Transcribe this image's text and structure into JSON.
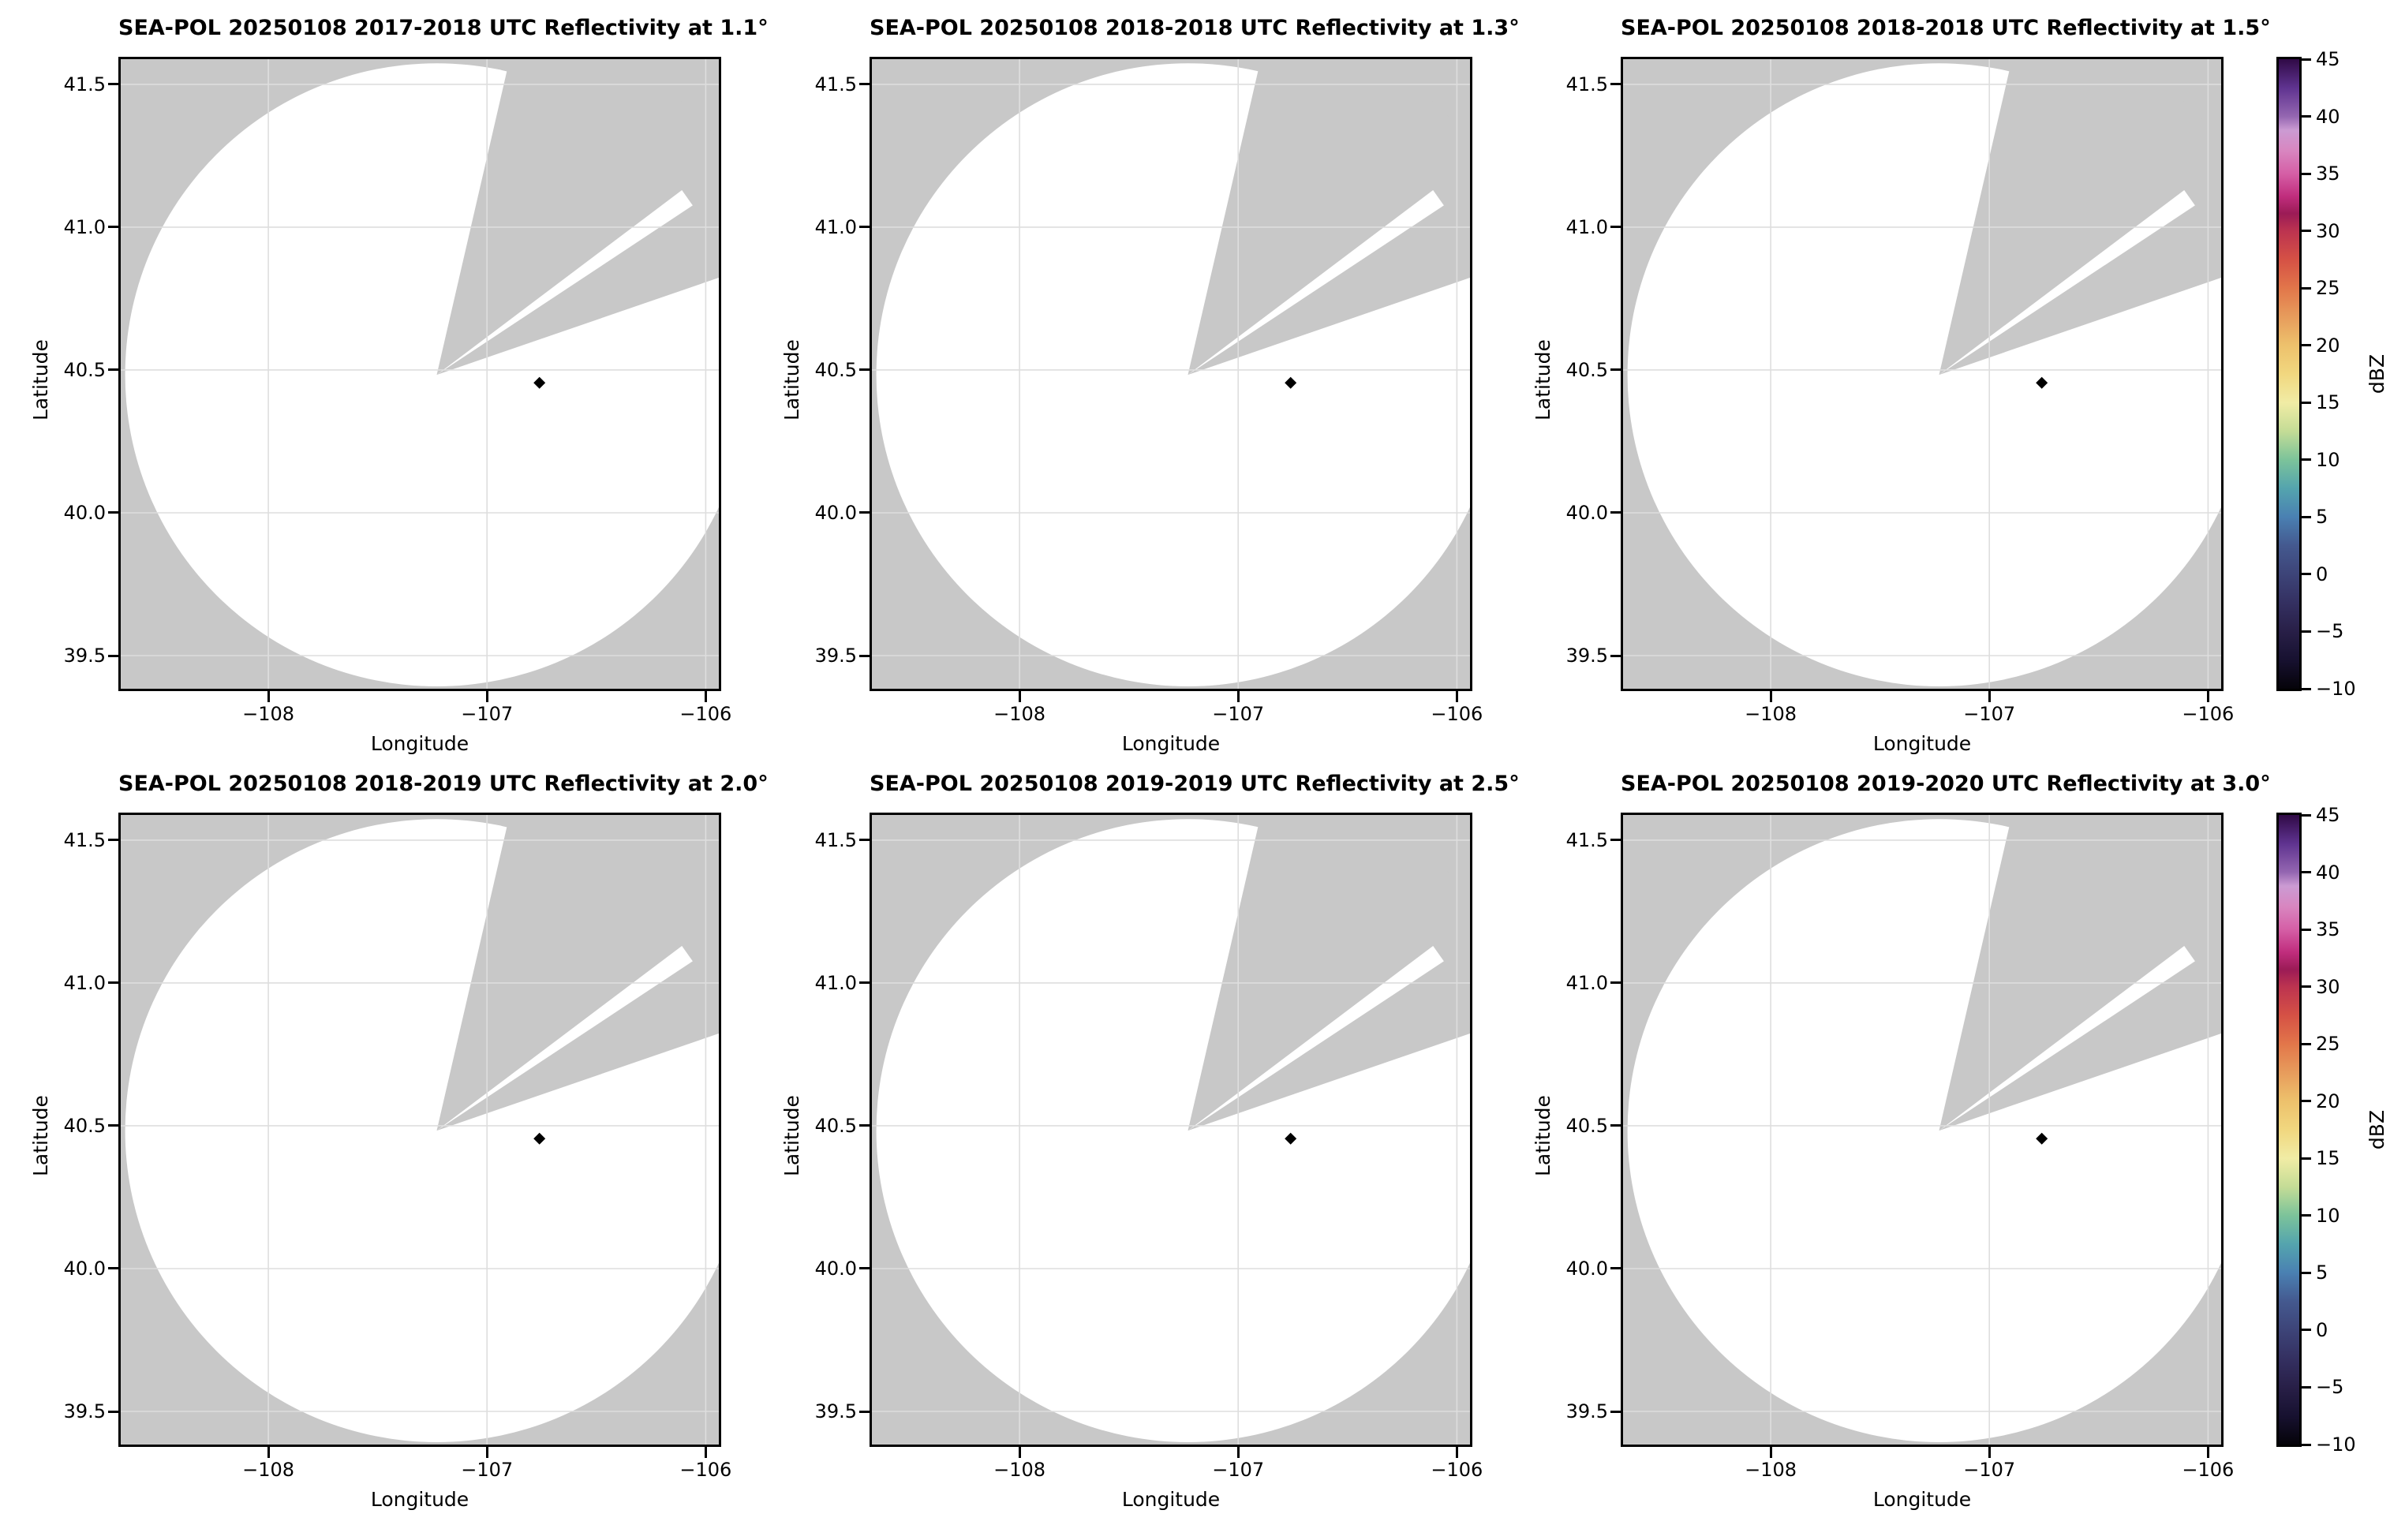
{
  "figure": {
    "panels": [
      {
        "title": "SEA-POL 20250108 2017-2018 UTC Reflectivity at 1.1°"
      },
      {
        "title": "SEA-POL 20250108 2018-2018 UTC Reflectivity at 1.3°"
      },
      {
        "title": "SEA-POL 20250108 2018-2018 UTC Reflectivity at 1.5°"
      },
      {
        "title": "SEA-POL 20250108 2018-2019 UTC Reflectivity at 2.0°"
      },
      {
        "title": "SEA-POL 20250108 2019-2019 UTC Reflectivity at 2.5°"
      },
      {
        "title": "SEA-POL 20250108 2019-2020 UTC Reflectivity at 3.0°"
      }
    ],
    "axes": {
      "x_label": "Longitude",
      "y_label": "Latitude",
      "x_tick_labels": [
        "−108",
        "−107",
        "−106"
      ],
      "x_tick_values": [
        -108,
        -107,
        -106
      ],
      "y_tick_labels": [
        "41.5",
        "41.0",
        "40.5",
        "40.0",
        "39.5"
      ],
      "y_tick_values": [
        41.5,
        41.0,
        40.5,
        40.0,
        39.5
      ],
      "lon_range": [
        -108.675,
        -105.94
      ],
      "lat_range": [
        39.384,
        41.588
      ]
    },
    "colorbar": {
      "label": "dBZ",
      "tick_labels": [
        "45",
        "40",
        "35",
        "30",
        "25",
        "20",
        "15",
        "10",
        "5",
        "0",
        "−5",
        "−10"
      ],
      "tick_values": [
        45,
        40,
        35,
        30,
        25,
        20,
        15,
        10,
        5,
        0,
        -5,
        -10
      ],
      "vmin": -10,
      "vmax": 45,
      "stops": [
        [
          -10,
          "#050309"
        ],
        [
          -7.5,
          "#171130"
        ],
        [
          -5,
          "#281f47"
        ],
        [
          -2.5,
          "#343061"
        ],
        [
          0,
          "#3d4478"
        ],
        [
          2.5,
          "#44598f"
        ],
        [
          5,
          "#4a80b2"
        ],
        [
          7.5,
          "#54a4ae"
        ],
        [
          10,
          "#7cc39a"
        ],
        [
          12.5,
          "#c4dc96"
        ],
        [
          15,
          "#f1eca5"
        ],
        [
          17.5,
          "#f1d77f"
        ],
        [
          20,
          "#edc16c"
        ],
        [
          22.5,
          "#e79c5c"
        ],
        [
          25,
          "#e2764a"
        ],
        [
          27.5,
          "#d55145"
        ],
        [
          30,
          "#bc3350"
        ],
        [
          31.5,
          "#9b1b56"
        ],
        [
          33,
          "#c02d7d"
        ],
        [
          35,
          "#d55fa6"
        ],
        [
          37,
          "#d886c0"
        ],
        [
          38.8,
          "#cb9bd3"
        ],
        [
          40,
          "#9466b1"
        ],
        [
          42.5,
          "#5f3390"
        ],
        [
          45,
          "#300a46"
        ]
      ]
    },
    "colors": {
      "no_data_gray": "#c8c8c8",
      "scanned_white": "#ffffff",
      "gridline": "#dedede",
      "frame": "#000000",
      "marker": "#000000"
    },
    "chart_data": {
      "type": "heatmap",
      "subtype": "radar-ppi-reflectivity",
      "radar_name": "SEA-POL",
      "date": "20250108",
      "subplots": [
        {
          "title": "SEA-POL 20250108 2017-2018 UTC Reflectivity at 1.1°",
          "time_utc": "2017-2018",
          "elevation_deg": 1.1
        },
        {
          "title": "SEA-POL 20250108 2018-2018 UTC Reflectivity at 1.3°",
          "time_utc": "2018-2018",
          "elevation_deg": 1.3
        },
        {
          "title": "SEA-POL 20250108 2018-2018 UTC Reflectivity at 1.5°",
          "time_utc": "2018-2018",
          "elevation_deg": 1.5
        },
        {
          "title": "SEA-POL 20250108 2018-2019 UTC Reflectivity at 2.0°",
          "time_utc": "2018-2019",
          "elevation_deg": 2.0
        },
        {
          "title": "SEA-POL 20250108 2019-2019 UTC Reflectivity at 2.5°",
          "time_utc": "2019-2019",
          "elevation_deg": 2.5
        },
        {
          "title": "SEA-POL 20250108 2019-2020 UTC Reflectivity at 3.0°",
          "time_utc": "2019-2020",
          "elevation_deg": 3.0
        }
      ],
      "x": {
        "label": "Longitude",
        "ticks": [
          -108,
          -107,
          -106
        ],
        "range": [
          -108.675,
          -105.94
        ]
      },
      "y": {
        "label": "Latitude",
        "ticks": [
          41.5,
          41.0,
          40.5,
          40.0,
          39.5
        ],
        "range": [
          39.384,
          41.588
        ]
      },
      "z": {
        "label": "dBZ",
        "vmin": -10,
        "vmax": 45,
        "tick_step": 5
      },
      "scan": {
        "center_lon": -107.23,
        "center_lat": 40.483,
        "radius_deg_lon": 1.425,
        "missing_sector_azimuth_deg": [
          13,
          71
        ],
        "scanned_sliver_azimuth_deg": [
          53,
          56.5
        ],
        "sliver_radius_fraction": 0.985
      },
      "marker": {
        "lon": -106.76,
        "lat": 40.455,
        "shape": "diamond",
        "color": "#000000"
      },
      "reflectivity_echoes": "none visible; scanned area is blank (below minimum of color scale)"
    }
  }
}
